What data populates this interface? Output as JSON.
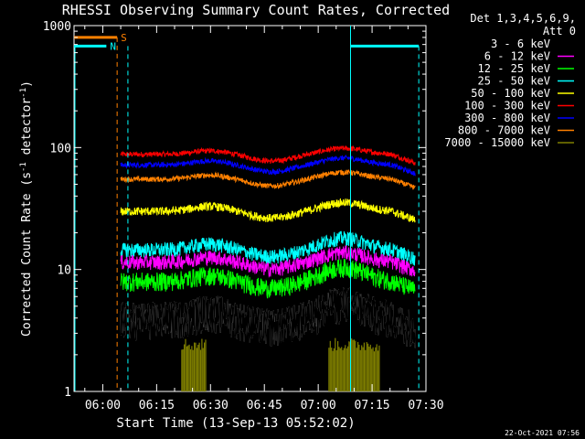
{
  "chart_data": {
    "type": "line",
    "title": "RHESSI Observing Summary Count Rates, Corrected",
    "xlabel": "Start Time (13-Sep-13 05:52:02)",
    "ylabel": "Corrected Count Rate (s^-1 detector^-1)",
    "ylabel_parts": {
      "a": "Corrected Count Rate (s",
      "b": "-1",
      "c": " detector",
      "d": "-1",
      "e": ")"
    },
    "yscale": "log",
    "ylim": [
      1,
      1000
    ],
    "xlim_minutes_after_0552": [
      0,
      98
    ],
    "x_ticks": [
      {
        "label": "06:00",
        "min": 8
      },
      {
        "label": "06:15",
        "min": 23
      },
      {
        "label": "06:30",
        "min": 38
      },
      {
        "label": "06:45",
        "min": 53
      },
      {
        "label": "07:00",
        "min": 68
      },
      {
        "label": "07:15",
        "min": 83
      },
      {
        "label": "07:30",
        "min": 98
      }
    ],
    "y_ticks": [
      {
        "label": "1",
        "v": 1
      },
      {
        "label": "10",
        "v": 10
      },
      {
        "label": "100",
        "v": 100
      },
      {
        "label": "1000",
        "v": 1000
      }
    ],
    "legend": {
      "placement": "right",
      "header_1": "Det 1,3,4,5,6,9,",
      "header_2": "Att 0",
      "entries": [
        {
          "name": "3 - 6 keV",
          "color": "#000000"
        },
        {
          "name": "6 - 12 keV",
          "color": "#ff00ff"
        },
        {
          "name": "12 - 25 keV",
          "color": "#00ff00"
        },
        {
          "name": "25 - 50 keV",
          "color": "#00ffff"
        },
        {
          "name": "50 - 100 keV",
          "color": "#ffff00"
        },
        {
          "name": "100 - 300 keV",
          "color": "#ff0000"
        },
        {
          "name": "300 - 800 keV",
          "color": "#0000ff"
        },
        {
          "name": "800 - 7000 keV",
          "color": "#ff8000"
        },
        {
          "name": "7000 - 15000 keV",
          "color": "#808000"
        }
      ]
    },
    "series": [
      {
        "name": "100 - 300 keV",
        "color": "#ff0000",
        "base": 88,
        "bump1": 1.07,
        "bump2": 1.12,
        "noise": 0.05
      },
      {
        "name": "300 - 800 keV",
        "color": "#0000ff",
        "base": 72,
        "bump1": 1.08,
        "bump2": 1.14,
        "noise": 0.05
      },
      {
        "name": "800 - 7000 keV",
        "color": "#ff8000",
        "base": 55,
        "bump1": 1.08,
        "bump2": 1.14,
        "noise": 0.05
      },
      {
        "name": "50 - 100 keV",
        "color": "#ffff00",
        "base": 30,
        "bump1": 1.1,
        "bump2": 1.18,
        "noise": 0.08
      },
      {
        "name": "25 - 50 keV",
        "color": "#00ffff",
        "base": 14.5,
        "bump1": 1.12,
        "bump2": 1.25,
        "noise": 0.14
      },
      {
        "name": "6 - 12 keV",
        "color": "#ff00ff",
        "base": 11.5,
        "bump1": 1.1,
        "bump2": 1.2,
        "noise": 0.14
      },
      {
        "name": "12 - 25 keV",
        "color": "#00ff00",
        "base": 8,
        "bump1": 1.12,
        "bump2": 1.3,
        "noise": 0.18
      },
      {
        "name": "3 - 6 keV",
        "color": "#000000",
        "base": 4,
        "bump1": 1.15,
        "bump2": 1.35,
        "noise": 0.35
      }
    ],
    "x_start_min": 13,
    "x_end_min": 95,
    "bump_centers_min": [
      38,
      75
    ],
    "high_energy_bursts": [
      {
        "from_min": 30,
        "to_min": 37,
        "level": 2.5
      },
      {
        "from_min": 71,
        "to_min": 85,
        "level": 2.5
      }
    ],
    "markers": [
      {
        "label": "S",
        "color": "#ff8000",
        "y_value": 800,
        "x_from_min": 0,
        "x_to_min": 12,
        "dashed_x_min": 12
      },
      {
        "label": "N",
        "color": "#00ffff",
        "y_value": 680,
        "x_from_min": 0,
        "x_to_min": 9,
        "dashed_x_min": 15
      }
    ],
    "night_bar": {
      "color": "#00ffff",
      "y_value": 680,
      "x_from_min": 77,
      "x_to_min": 96,
      "solid_x_min": 77,
      "dashed_x_min": 96
    },
    "footer_date": "22-Oct-2021 07:56"
  }
}
